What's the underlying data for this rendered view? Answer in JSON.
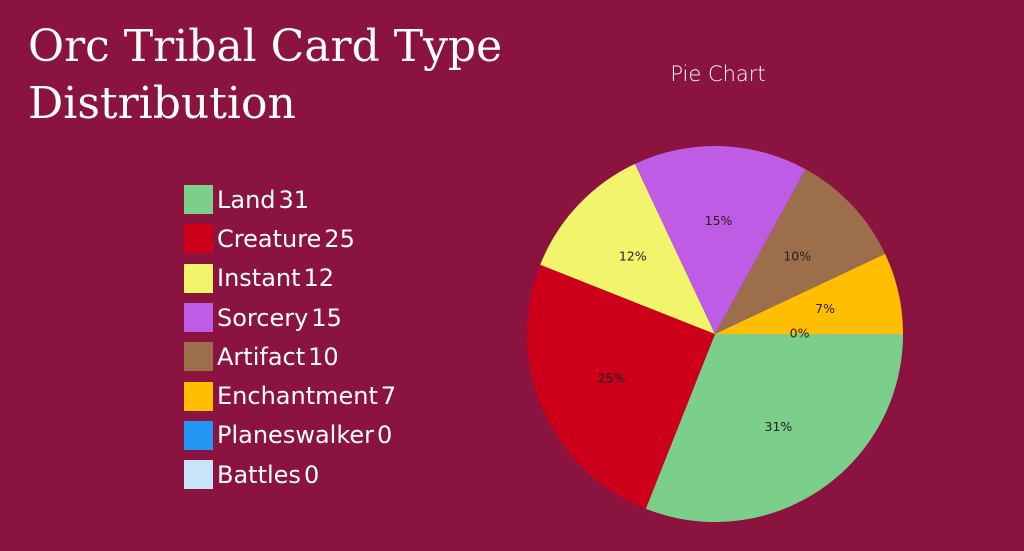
{
  "title": "Orc Tribal Card Type Distribution",
  "chart_data": {
    "type": "pie",
    "title": "Pie Chart",
    "legend_position": "left",
    "slices": [
      {
        "name": "Land",
        "value": 31,
        "label": "31%",
        "color": "#7bcf8b"
      },
      {
        "name": "Creature",
        "value": 25,
        "label": "25%",
        "color": "#cc0018"
      },
      {
        "name": "Instant",
        "value": 12,
        "label": "12%",
        "color": "#f2f56c"
      },
      {
        "name": "Sorcery",
        "value": 15,
        "label": "15%",
        "color": "#bf5ce6"
      },
      {
        "name": "Artifact",
        "value": 10,
        "label": "10%",
        "color": "#9d6e4b"
      },
      {
        "name": "Enchantment",
        "value": 7,
        "label": "7%",
        "color": "#ffbf00"
      },
      {
        "name": "Planeswalker",
        "value": 0,
        "label": "0%",
        "color": "#2196f3"
      },
      {
        "name": "Battles",
        "value": 0,
        "label": "0%",
        "color": "#c9e3fa"
      }
    ]
  }
}
